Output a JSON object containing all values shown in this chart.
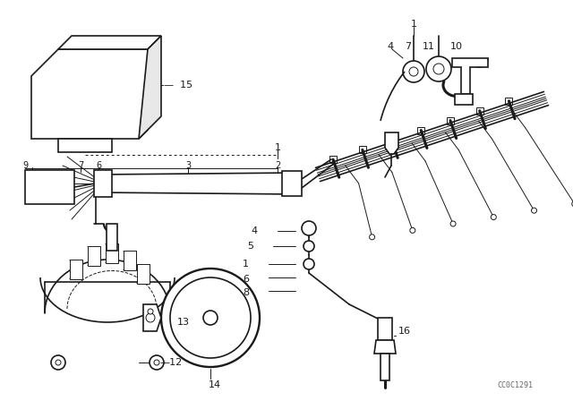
{
  "bg_color": "#ffffff",
  "line_color": "#1a1a1a",
  "fig_width": 6.4,
  "fig_height": 4.48,
  "dpi": 100,
  "watermark": "CC0C1291",
  "label_fs": 8,
  "lw_main": 1.2,
  "lw_thin": 0.7,
  "lw_thick": 1.8
}
